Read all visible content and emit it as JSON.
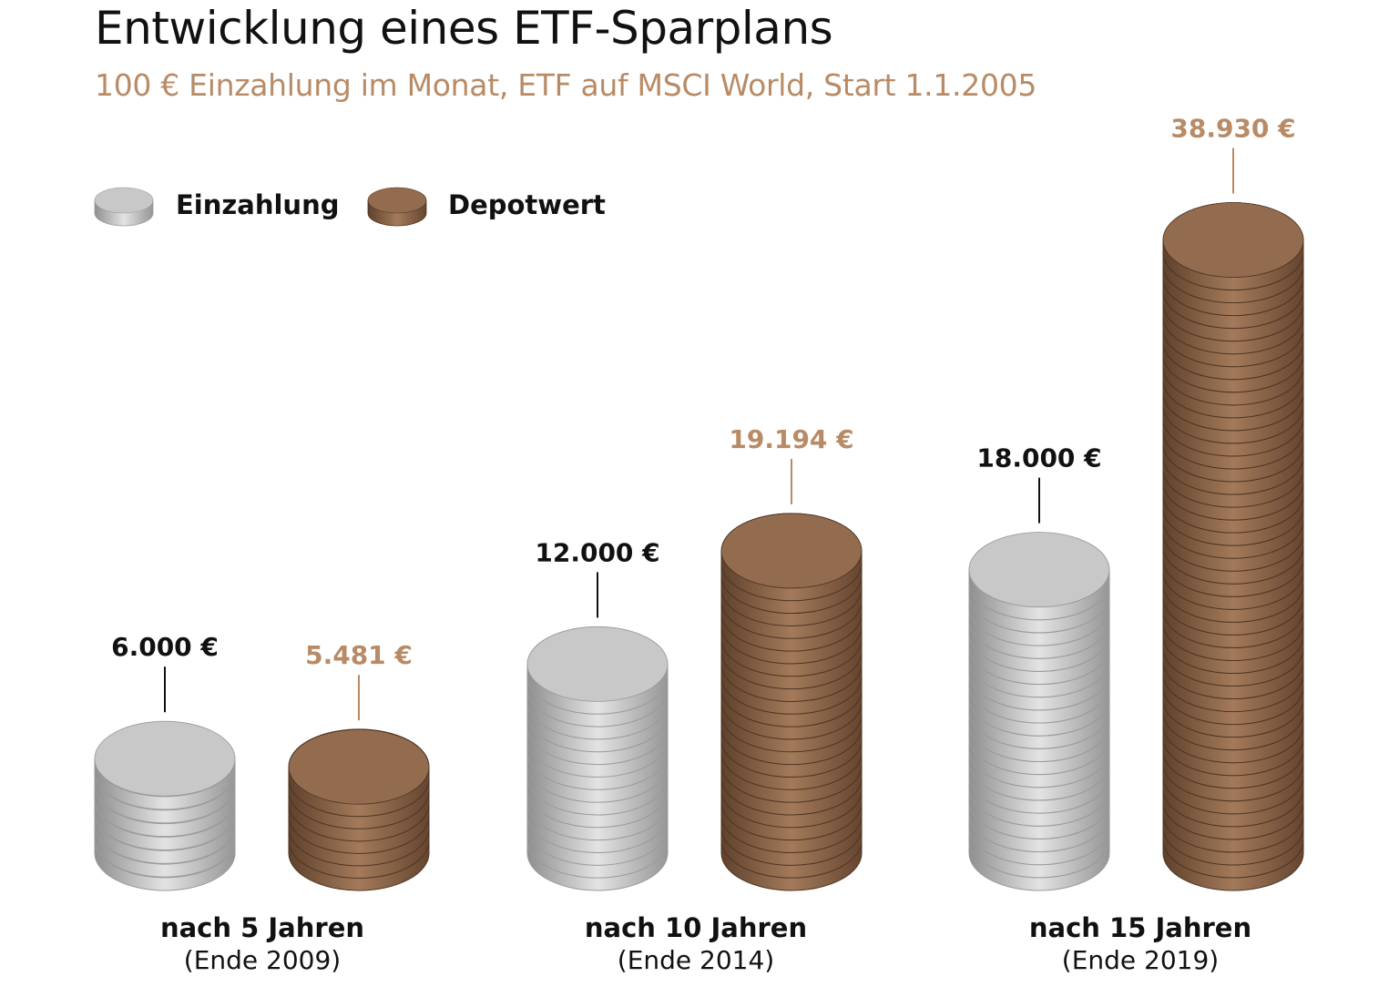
{
  "chart_data": {
    "type": "bar",
    "title": "Entwicklung eines ETF-Sparplans",
    "subtitle": "100 € Einzahlung im Monat, ETF auf MSCI World, Start 1.1.2005",
    "categories": [
      {
        "label": "nach 5 Jahren",
        "sublabel": "(Ende 2009)"
      },
      {
        "label": "nach 10 Jahren",
        "sublabel": "(Ende 2014)"
      },
      {
        "label": "nach 15 Jahren",
        "sublabel": "(Ende 2019)"
      }
    ],
    "series": [
      {
        "name": "Einzahlung",
        "values": [
          6000,
          12000,
          18000
        ],
        "value_labels": [
          "6.000 €",
          "12.000 €",
          "18.000 €"
        ]
      },
      {
        "name": "Depotwert",
        "values": [
          5481,
          19194,
          38930
        ],
        "value_labels": [
          "5.481 €",
          "19.194 €",
          "38.930 €"
        ]
      }
    ],
    "legend_position": "top-left",
    "grid": false,
    "colors": {
      "einzahlung": "#c8c8c8",
      "depotwert": "#936c4f",
      "accent_text": "#b88b66",
      "dark_text": "#111111"
    }
  }
}
